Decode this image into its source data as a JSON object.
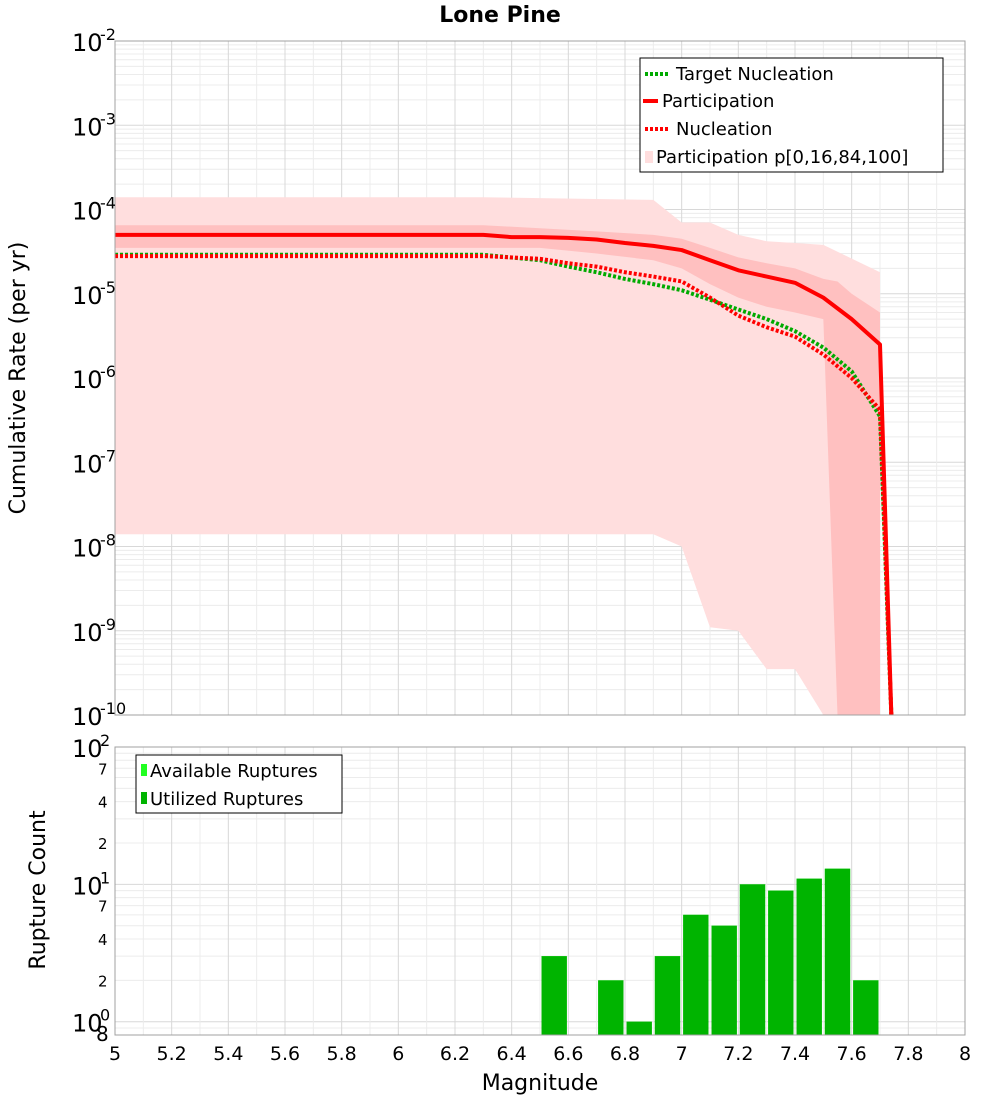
{
  "chart_data": [
    {
      "type": "line",
      "title": "Lone Pine",
      "xlabel": "",
      "ylabel": "Cumulative Rate (per yr)",
      "xlim": [
        5,
        8
      ],
      "ylim": [
        1e-10,
        0.01
      ],
      "yscale": "log",
      "grid": true,
      "legend_position": "top-right",
      "x_ticks": [
        "5",
        "5.2",
        "5.4",
        "5.6",
        "5.8",
        "6",
        "6.2",
        "6.4",
        "6.6",
        "6.8",
        "7",
        "7.2",
        "7.4",
        "7.6",
        "7.8",
        "8"
      ],
      "y_ticks": [
        {
          "base": "10",
          "exp": "-10",
          "value": 1e-10
        },
        {
          "base": "10",
          "exp": "-9",
          "value": 1e-09
        },
        {
          "base": "10",
          "exp": "-8",
          "value": 1e-08
        },
        {
          "base": "10",
          "exp": "-7",
          "value": 1e-07
        },
        {
          "base": "10",
          "exp": "-6",
          "value": 1e-06
        },
        {
          "base": "10",
          "exp": "-5",
          "value": 1e-05
        },
        {
          "base": "10",
          "exp": "-4",
          "value": 0.0001
        },
        {
          "base": "10",
          "exp": "-3",
          "value": 0.001
        },
        {
          "base": "10",
          "exp": "-2",
          "value": 0.01
        }
      ],
      "series": [
        {
          "name": "Target Nucleation",
          "style": "dotted",
          "color": "#00aa00",
          "x": [
            5.0,
            6.3,
            6.5,
            6.6,
            6.7,
            6.8,
            6.9,
            7.0,
            7.1,
            7.2,
            7.3,
            7.4,
            7.5,
            7.6,
            7.7,
            7.74
          ],
          "y": [
            2.9e-05,
            2.9e-05,
            2.5e-05,
            2.1e-05,
            1.8e-05,
            1.5e-05,
            1.3e-05,
            1.1e-05,
            8.5e-06,
            6.5e-06,
            5e-06,
            3.6e-06,
            2.3e-06,
            1.2e-06,
            3.5e-07,
            1e-10
          ]
        },
        {
          "name": "Participation",
          "style": "solid",
          "color": "#ff0000",
          "x": [
            5.0,
            6.3,
            6.4,
            6.5,
            6.6,
            6.7,
            6.8,
            6.9,
            7.0,
            7.1,
            7.2,
            7.3,
            7.4,
            7.5,
            7.6,
            7.7,
            7.74
          ],
          "y": [
            5e-05,
            5e-05,
            4.7e-05,
            4.7e-05,
            4.6e-05,
            4.4e-05,
            4e-05,
            3.7e-05,
            3.3e-05,
            2.5e-05,
            1.9e-05,
            1.6e-05,
            1.35e-05,
            9e-06,
            5e-06,
            2.5e-06,
            1e-10
          ]
        },
        {
          "name": "Nucleation",
          "style": "dotted",
          "color": "#ff0000",
          "x": [
            5.0,
            6.3,
            6.5,
            6.6,
            6.7,
            6.8,
            6.9,
            7.0,
            7.1,
            7.2,
            7.3,
            7.4,
            7.5,
            7.6,
            7.7,
            7.74
          ],
          "y": [
            2.8e-05,
            2.8e-05,
            2.6e-05,
            2.3e-05,
            2.1e-05,
            1.8e-05,
            1.6e-05,
            1.4e-05,
            9e-06,
            5.5e-06,
            4e-06,
            3.1e-06,
            1.9e-06,
            1e-06,
            4.2e-07,
            1e-10
          ]
        }
      ],
      "bands": {
        "name": "Participation p[0,16,84,100]",
        "outer_color": "#ffdede",
        "inner_color": "#ffb5b5",
        "outer": [
          [
            5.0,
            0.00014,
            1.4e-08
          ],
          [
            6.3,
            0.00014,
            1.4e-08
          ],
          [
            6.9,
            0.00013,
            1.4e-08
          ],
          [
            7.0,
            7e-05,
            1e-08
          ],
          [
            7.1,
            7e-05,
            1.1e-09
          ],
          [
            7.2,
            5e-05,
            1e-09
          ],
          [
            7.3,
            4.2e-05,
            3.5e-10
          ],
          [
            7.4,
            4e-05,
            3.5e-10
          ],
          [
            7.5,
            3.8e-05,
            1e-10
          ],
          [
            7.7,
            1.8e-05,
            1e-10
          ]
        ],
        "inner": [
          [
            5.0,
            6.5e-05,
            3.5e-05
          ],
          [
            6.3,
            6.5e-05,
            3.5e-05
          ],
          [
            6.5,
            6e-05,
            3.5e-05
          ],
          [
            6.7,
            5.5e-05,
            3e-05
          ],
          [
            6.9,
            5e-05,
            2.5e-05
          ],
          [
            7.0,
            4.5e-05,
            2e-05
          ],
          [
            7.1,
            3.5e-05,
            1.3e-05
          ],
          [
            7.2,
            2.7e-05,
            9e-06
          ],
          [
            7.3,
            2.3e-05,
            7e-06
          ],
          [
            7.4,
            2e-05,
            6e-06
          ],
          [
            7.5,
            1.5e-05,
            5e-06
          ],
          [
            7.55,
            1.4e-05,
            1e-10
          ],
          [
            7.6,
            1e-05,
            1e-10
          ],
          [
            7.7,
            6e-06,
            1e-10
          ]
        ]
      }
    },
    {
      "type": "bar",
      "xlabel": "Magnitude",
      "ylabel": "Rupture Count",
      "xlim": [
        5,
        8
      ],
      "ylim": [
        0.8,
        100
      ],
      "yscale": "log",
      "grid": true,
      "legend_position": "top-left",
      "y_major_ticks": [
        {
          "base": "10",
          "exp": "0",
          "value": 1
        },
        {
          "base": "10",
          "exp": "1",
          "value": 10
        },
        {
          "base": "10",
          "exp": "2",
          "value": 100
        }
      ],
      "y_minor_ticks": [
        {
          "label": "8",
          "value": 0.8
        },
        {
          "label": "2",
          "value": 2
        },
        {
          "label": "4",
          "value": 4
        },
        {
          "label": "7",
          "value": 7
        },
        {
          "label": "2",
          "value": 20
        },
        {
          "label": "4",
          "value": 40
        },
        {
          "label": "7",
          "value": 70
        }
      ],
      "bin_width": 0.1,
      "series": [
        {
          "name": "Available Ruptures",
          "color": "#22ff22",
          "x": [
            6.55,
            6.75,
            6.85,
            6.95,
            7.05,
            7.15,
            7.25,
            7.35,
            7.45,
            7.55,
            7.65
          ],
          "values": [
            3,
            2,
            1,
            3,
            6,
            5,
            10,
            9,
            11,
            13,
            2
          ]
        },
        {
          "name": "Utilized Ruptures",
          "color": "#00b400",
          "x": [
            6.55,
            6.75,
            6.85,
            6.95,
            7.05,
            7.15,
            7.25,
            7.35,
            7.45,
            7.55,
            7.65
          ],
          "values": [
            3,
            2,
            1,
            3,
            6,
            5,
            10,
            9,
            11,
            13,
            2
          ]
        }
      ]
    }
  ]
}
